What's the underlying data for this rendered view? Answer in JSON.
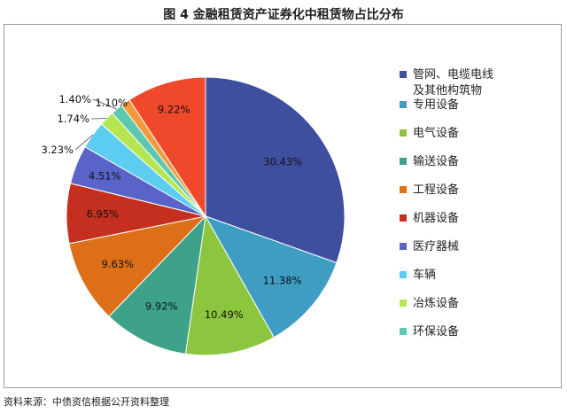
{
  "title": "图 4    金融租赁资产证券化中租赁物占比分布",
  "source": "资料来源：中债资信根据公开资料整理",
  "chart_data": {
    "type": "pie",
    "title": "图 4    金融租赁资产证券化中租赁物占比分布",
    "legend_position": "right",
    "slices": [
      {
        "label": "管网、电缆电线\n及其他构筑物",
        "value": 30.43,
        "value_label": "30.43%",
        "color": "#3f4fa0"
      },
      {
        "label": "专用设备",
        "value": 11.38,
        "value_label": "11.38%",
        "color": "#3f9dc4"
      },
      {
        "label": "电气设备",
        "value": 10.49,
        "value_label": "10.49%",
        "color": "#8cc63f"
      },
      {
        "label": "输送设备",
        "value": 9.92,
        "value_label": "9.92%",
        "color": "#3ea28a"
      },
      {
        "label": "工程设备",
        "value": 9.63,
        "value_label": "9.63%",
        "color": "#dc6f17"
      },
      {
        "label": "机器设备",
        "value": 6.95,
        "value_label": "6.95%",
        "color": "#c42f1f"
      },
      {
        "label": "医疗器械",
        "value": 4.51,
        "value_label": "4.51%",
        "color": "#5a64c8"
      },
      {
        "label": "车辆",
        "value": 3.23,
        "value_label": "3.23%",
        "color": "#5ccdf0"
      },
      {
        "label": "冶炼设备",
        "value": 1.74,
        "value_label": "1.74%",
        "color": "#b5e650"
      },
      {
        "label": "环保设备",
        "value": 1.4,
        "value_label": "1.40%",
        "color": "#5ec7b0"
      },
      {
        "label": "",
        "value": 1.1,
        "value_label": "1.10%",
        "color": "#f39a3c"
      },
      {
        "label": "",
        "value": 9.22,
        "value_label": "9.22%",
        "color": "#f0482a"
      }
    ]
  }
}
